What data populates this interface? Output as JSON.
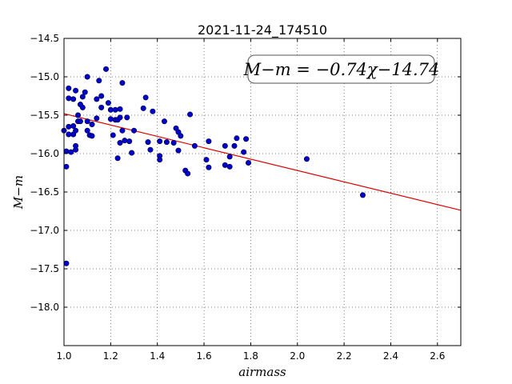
{
  "chart_data": {
    "type": "scatter",
    "title": "2021-11-24_174510",
    "xlabel": "airmass",
    "ylabel": "M−m",
    "xlim": [
      1.0,
      2.7
    ],
    "ylim": [
      -18.5,
      -14.5
    ],
    "y_inverted": true,
    "grid": true,
    "x_ticks": [
      "1.0",
      "1.2",
      "1.4",
      "1.6",
      "1.8",
      "2.0",
      "2.2",
      "2.4",
      "2.6"
    ],
    "x_tick_values": [
      1.0,
      1.2,
      1.4,
      1.6,
      1.8,
      2.0,
      2.2,
      2.4,
      2.6
    ],
    "y_ticks": [
      "−14.5",
      "−15.0",
      "−15.5",
      "−16.0",
      "−16.5",
      "−17.0",
      "−17.5",
      "−18.0"
    ],
    "y_tick_values": [
      -14.5,
      -15.0,
      -15.5,
      -16.0,
      -16.5,
      -17.0,
      -17.5,
      -18.0
    ],
    "annotation": "M−m = −0.74χ−14.74",
    "fit": {
      "slope": -0.74,
      "intercept": -14.74,
      "color": "#dd0000"
    },
    "point_color": "#0000cc",
    "points": [
      [
        1.0,
        -15.7
      ],
      [
        1.01,
        -15.97
      ],
      [
        1.01,
        -16.17
      ],
      [
        1.01,
        -17.43
      ],
      [
        1.02,
        -15.15
      ],
      [
        1.02,
        -15.28
      ],
      [
        1.02,
        -15.65
      ],
      [
        1.02,
        -15.75
      ],
      [
        1.03,
        -15.98
      ],
      [
        1.04,
        -15.29
      ],
      [
        1.04,
        -15.75
      ],
      [
        1.04,
        -15.64
      ],
      [
        1.05,
        -15.18
      ],
      [
        1.05,
        -15.9
      ],
      [
        1.05,
        -15.95
      ],
      [
        1.05,
        -15.7
      ],
      [
        1.06,
        -15.5
      ],
      [
        1.06,
        -15.58
      ],
      [
        1.07,
        -15.36
      ],
      [
        1.07,
        -15.58
      ],
      [
        1.08,
        -15.26
      ],
      [
        1.08,
        -15.4
      ],
      [
        1.09,
        -15.2
      ],
      [
        1.1,
        -15.0
      ],
      [
        1.1,
        -15.58
      ],
      [
        1.1,
        -15.7
      ],
      [
        1.11,
        -15.76
      ],
      [
        1.12,
        -15.77
      ],
      [
        1.12,
        -15.62
      ],
      [
        1.14,
        -15.29
      ],
      [
        1.14,
        -15.54
      ],
      [
        1.15,
        -15.05
      ],
      [
        1.16,
        -15.4
      ],
      [
        1.16,
        -15.25
      ],
      [
        1.18,
        -14.9
      ],
      [
        1.19,
        -15.34
      ],
      [
        1.2,
        -15.43
      ],
      [
        1.2,
        -15.55
      ],
      [
        1.21,
        -15.76
      ],
      [
        1.22,
        -15.43
      ],
      [
        1.22,
        -15.56
      ],
      [
        1.23,
        -15.56
      ],
      [
        1.23,
        -16.06
      ],
      [
        1.24,
        -15.42
      ],
      [
        1.24,
        -15.53
      ],
      [
        1.24,
        -15.86
      ],
      [
        1.25,
        -15.08
      ],
      [
        1.25,
        -15.7
      ],
      [
        1.26,
        -15.83
      ],
      [
        1.27,
        -15.53
      ],
      [
        1.28,
        -15.84
      ],
      [
        1.29,
        -15.99
      ],
      [
        1.3,
        -15.7
      ],
      [
        1.34,
        -15.41
      ],
      [
        1.35,
        -15.27
      ],
      [
        1.36,
        -15.85
      ],
      [
        1.37,
        -15.95
      ],
      [
        1.38,
        -15.45
      ],
      [
        1.41,
        -15.84
      ],
      [
        1.41,
        -16.03
      ],
      [
        1.41,
        -16.08
      ],
      [
        1.43,
        -15.58
      ],
      [
        1.44,
        -15.85
      ],
      [
        1.47,
        -15.86
      ],
      [
        1.48,
        -15.67
      ],
      [
        1.49,
        -15.72
      ],
      [
        1.49,
        -15.96
      ],
      [
        1.5,
        -15.77
      ],
      [
        1.52,
        -16.22
      ],
      [
        1.53,
        -16.26
      ],
      [
        1.54,
        -15.49
      ],
      [
        1.56,
        -15.9
      ],
      [
        1.61,
        -16.08
      ],
      [
        1.62,
        -15.84
      ],
      [
        1.62,
        -16.18
      ],
      [
        1.69,
        -15.9
      ],
      [
        1.69,
        -16.15
      ],
      [
        1.71,
        -16.04
      ],
      [
        1.71,
        -16.17
      ],
      [
        1.73,
        -15.9
      ],
      [
        1.74,
        -15.8
      ],
      [
        1.77,
        -15.98
      ],
      [
        1.78,
        -15.81
      ],
      [
        1.79,
        -16.12
      ],
      [
        2.04,
        -16.07
      ],
      [
        2.28,
        -16.54
      ]
    ]
  }
}
